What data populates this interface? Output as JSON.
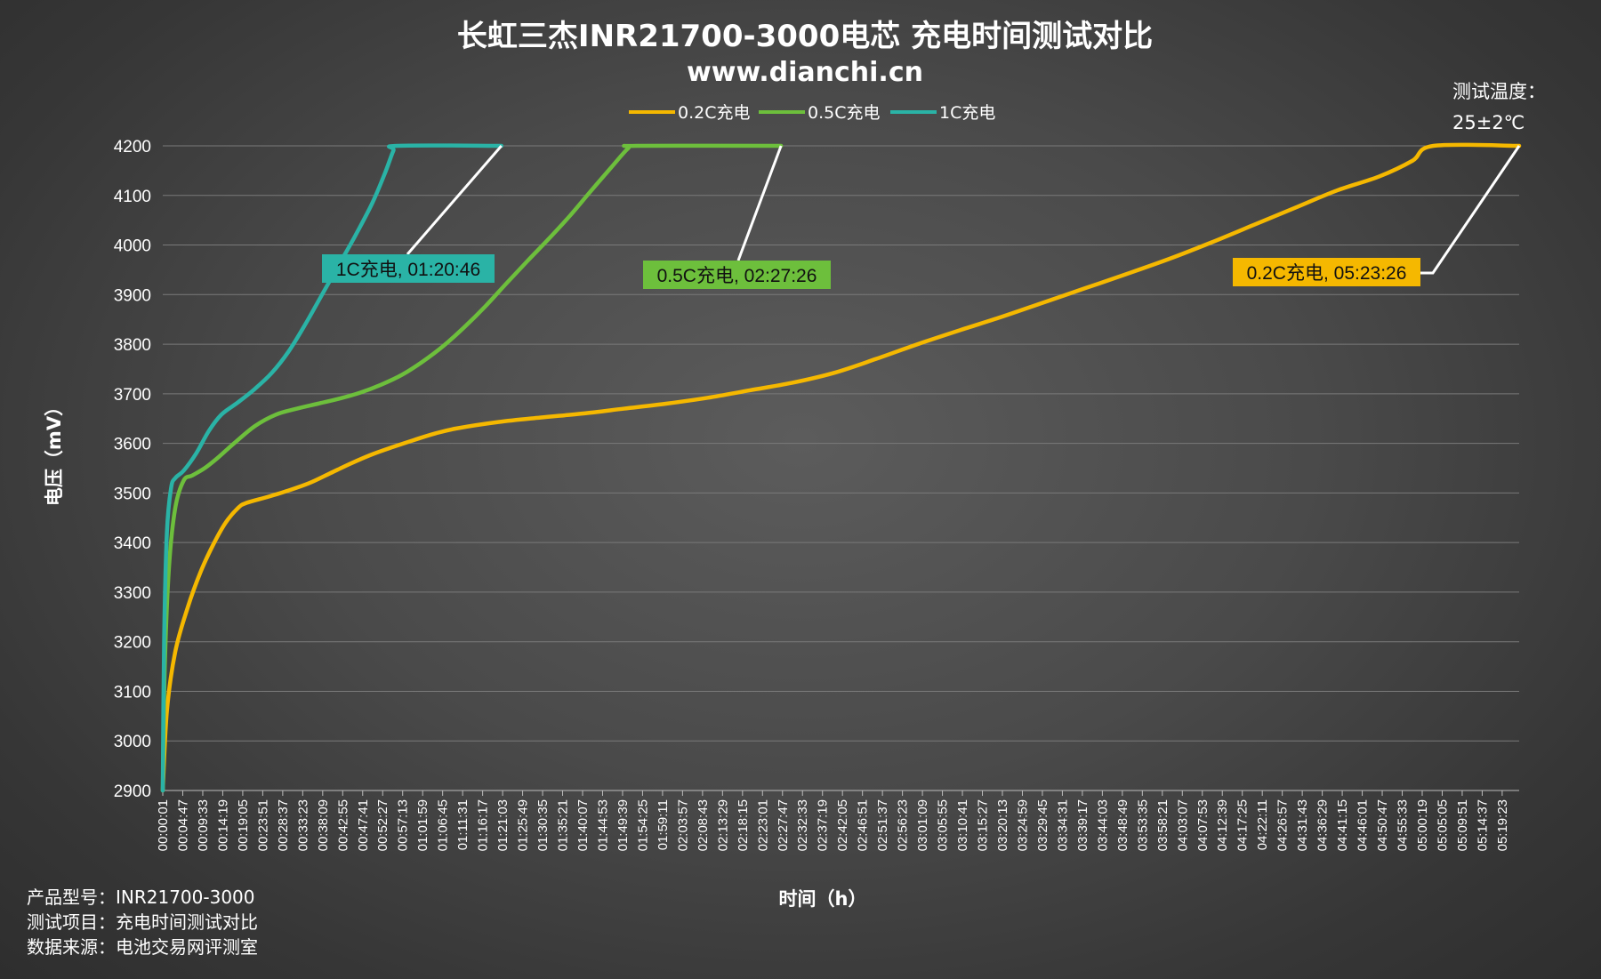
{
  "title": "长虹三杰INR21700-3000电芯 充电时间测试对比",
  "subtitle": "www.dianchi.cn",
  "temperature_note": {
    "line1": "测试温度：",
    "line2": "25±2℃"
  },
  "footer": {
    "line1": "产品型号：INR21700-3000",
    "line2": "测试项目：充电时间测试对比",
    "line3": "数据来源：电池交易网评测室"
  },
  "chart_data": {
    "type": "line",
    "xlabel": "时间（h）",
    "ylabel": "电压（mV）",
    "ylim": [
      2900,
      4200
    ],
    "yticks": [
      2900,
      3000,
      3100,
      3200,
      3300,
      3400,
      3500,
      3600,
      3700,
      3800,
      3900,
      4000,
      4100,
      4200
    ],
    "xlim": [
      "00:00:01",
      "05:23:26"
    ],
    "xticks": [
      "00:00:01",
      "00:04:47",
      "00:09:33",
      "00:14:19",
      "00:19:05",
      "00:23:51",
      "00:28:37",
      "00:33:23",
      "00:38:09",
      "00:42:55",
      "00:47:41",
      "00:52:27",
      "00:57:13",
      "01:01:59",
      "01:06:45",
      "01:11:31",
      "01:16:17",
      "01:21:03",
      "01:25:49",
      "01:30:35",
      "01:35:21",
      "01:40:07",
      "01:44:53",
      "01:49:39",
      "01:54:25",
      "01:59:11",
      "02:03:57",
      "02:08:43",
      "02:13:29",
      "02:18:15",
      "02:23:01",
      "02:27:47",
      "02:32:33",
      "02:37:19",
      "02:42:05",
      "02:46:51",
      "02:51:37",
      "02:56:23",
      "03:01:09",
      "03:05:55",
      "03:10:41",
      "03:15:27",
      "03:20:13",
      "03:24:59",
      "03:29:45",
      "03:34:31",
      "03:39:17",
      "03:44:03",
      "03:48:49",
      "03:53:35",
      "03:58:21",
      "04:03:07",
      "04:07:53",
      "04:12:39",
      "04:17:25",
      "04:22:11",
      "04:26:57",
      "04:31:43",
      "04:36:29",
      "04:41:15",
      "04:46:01",
      "04:50:47",
      "04:55:33",
      "05:00:19",
      "05:05:05",
      "05:09:51",
      "05:14:37",
      "05:19:23"
    ],
    "grid": true,
    "legend": "top-center",
    "series": [
      {
        "name": "0.2C充电",
        "color": "#f5b800",
        "points": [
          [
            "00:00:01",
            2900
          ],
          [
            "00:01:00",
            3060
          ],
          [
            "00:03:00",
            3180
          ],
          [
            "00:06:00",
            3270
          ],
          [
            "00:09:00",
            3340
          ],
          [
            "00:12:00",
            3395
          ],
          [
            "00:15:00",
            3440
          ],
          [
            "00:18:00",
            3470
          ],
          [
            "00:20:00",
            3480
          ],
          [
            "00:25:00",
            3492
          ],
          [
            "00:30:00",
            3505
          ],
          [
            "00:35:00",
            3520
          ],
          [
            "00:40:00",
            3540
          ],
          [
            "00:45:00",
            3560
          ],
          [
            "00:50:00",
            3578
          ],
          [
            "00:55:00",
            3593
          ],
          [
            "01:00:00",
            3607
          ],
          [
            "01:05:00",
            3620
          ],
          [
            "01:10:00",
            3630
          ],
          [
            "01:20:00",
            3643
          ],
          [
            "01:30:00",
            3652
          ],
          [
            "01:40:00",
            3660
          ],
          [
            "01:50:00",
            3670
          ],
          [
            "02:00:00",
            3680
          ],
          [
            "02:10:00",
            3692
          ],
          [
            "02:20:00",
            3707
          ],
          [
            "02:30:00",
            3722
          ],
          [
            "02:40:00",
            3742
          ],
          [
            "02:50:00",
            3770
          ],
          [
            "03:00:00",
            3800
          ],
          [
            "03:10:00",
            3828
          ],
          [
            "03:20:00",
            3855
          ],
          [
            "03:30:00",
            3884
          ],
          [
            "03:40:00",
            3913
          ],
          [
            "03:50:00",
            3942
          ],
          [
            "04:00:00",
            3972
          ],
          [
            "04:10:00",
            4005
          ],
          [
            "04:20:00",
            4040
          ],
          [
            "04:30:00",
            4075
          ],
          [
            "04:40:00",
            4110
          ],
          [
            "04:50:00",
            4138
          ],
          [
            "04:58:00",
            4170
          ],
          [
            "05:03:00",
            4200
          ],
          [
            "05:23:26",
            4200
          ]
        ]
      },
      {
        "name": "0.5C充电",
        "color": "#6dbf3c",
        "points": [
          [
            "00:00:01",
            2900
          ],
          [
            "00:00:30",
            3150
          ],
          [
            "00:01:30",
            3350
          ],
          [
            "00:03:00",
            3470
          ],
          [
            "00:05:00",
            3525
          ],
          [
            "00:07:00",
            3535
          ],
          [
            "00:10:00",
            3550
          ],
          [
            "00:13:00",
            3570
          ],
          [
            "00:17:00",
            3600
          ],
          [
            "00:22:00",
            3635
          ],
          [
            "00:27:00",
            3658
          ],
          [
            "00:32:00",
            3670
          ],
          [
            "00:37:00",
            3680
          ],
          [
            "00:42:00",
            3690
          ],
          [
            "00:47:00",
            3702
          ],
          [
            "00:52:00",
            3718
          ],
          [
            "00:57:00",
            3738
          ],
          [
            "01:02:00",
            3765
          ],
          [
            "01:07:00",
            3797
          ],
          [
            "01:12:00",
            3835
          ],
          [
            "01:17:00",
            3877
          ],
          [
            "01:22:00",
            3923
          ],
          [
            "01:27:00",
            3968
          ],
          [
            "01:32:00",
            4012
          ],
          [
            "01:37:00",
            4058
          ],
          [
            "01:42:00",
            4108
          ],
          [
            "01:47:00",
            4157
          ],
          [
            "01:51:00",
            4195
          ],
          [
            "01:53:00",
            4200
          ],
          [
            "02:27:26",
            4200
          ]
        ]
      },
      {
        "name": "1C充电",
        "color": "#2ab3a6",
        "points": [
          [
            "00:00:01",
            2900
          ],
          [
            "00:00:20",
            3200
          ],
          [
            "00:01:00",
            3420
          ],
          [
            "00:02:00",
            3510
          ],
          [
            "00:03:00",
            3530
          ],
          [
            "00:05:00",
            3545
          ],
          [
            "00:08:00",
            3580
          ],
          [
            "00:11:00",
            3625
          ],
          [
            "00:14:00",
            3658
          ],
          [
            "00:18:00",
            3683
          ],
          [
            "00:22:00",
            3710
          ],
          [
            "00:26:00",
            3742
          ],
          [
            "00:30:00",
            3785
          ],
          [
            "00:34:00",
            3840
          ],
          [
            "00:38:00",
            3900
          ],
          [
            "00:42:00",
            3960
          ],
          [
            "00:46:00",
            4020
          ],
          [
            "00:50:00",
            4085
          ],
          [
            "00:53:00",
            4145
          ],
          [
            "00:55:00",
            4190
          ],
          [
            "00:56:00",
            4200
          ],
          [
            "01:20:46",
            4200
          ]
        ]
      }
    ],
    "annotations": [
      {
        "text": "1C充电, 01:20:46",
        "series": "1C充电",
        "color": "#2ab3a6"
      },
      {
        "text": "0.5C充电, 02:27:26",
        "series": "0.5C充电",
        "color": "#6dbf3c"
      },
      {
        "text": "0.2C充电, 05:23:26",
        "series": "0.2C充电",
        "color": "#f5b800"
      }
    ]
  }
}
